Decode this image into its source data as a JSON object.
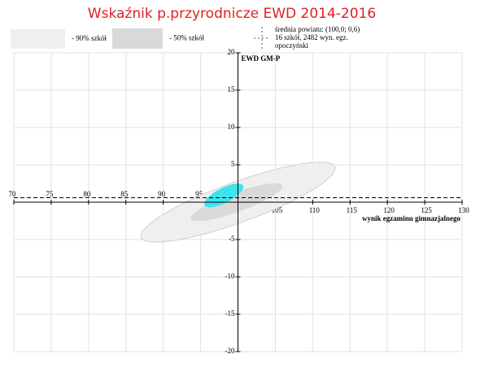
{
  "chart_data": {
    "type": "ellipse",
    "title": "Wskaźnik p.przyrodnicze EWD 2014-2016",
    "x_label": "wynik egzaminu gimnazjalnego",
    "y_label": "EWD GM-P",
    "xlim": [
      70,
      130
    ],
    "ylim": [
      -20,
      20
    ],
    "xticks": [
      70,
      75,
      80,
      85,
      90,
      95,
      105,
      110,
      115,
      120,
      125,
      130
    ],
    "yticks": [
      20,
      15,
      10,
      5,
      -5,
      -10,
      -15,
      -20
    ],
    "grid": true,
    "series": [
      {
        "name": "- 90% szkół",
        "color": "#efefef",
        "cx": 100,
        "cy": 0,
        "rx": 13.8,
        "ry": 2.7,
        "angle": 20
      },
      {
        "name": "- 50% szkół",
        "color": "#d9d9d9",
        "cx": 99.8,
        "cy": 0,
        "rx": 6.5,
        "ry": 1.3,
        "angle": 20
      }
    ],
    "county": {
      "color": "#3fe3ec",
      "cx": 98.1,
      "cy": 0.9,
      "rx": 2.9,
      "ry": 1.0,
      "angle": 27
    },
    "mean": {
      "x": 100,
      "y": 0.6
    },
    "mean_legend": [
      "średnia powiatu: (100,0; 0,6)",
      "16 szkół, 2482 wyn. egz.",
      "opoczyński"
    ]
  }
}
